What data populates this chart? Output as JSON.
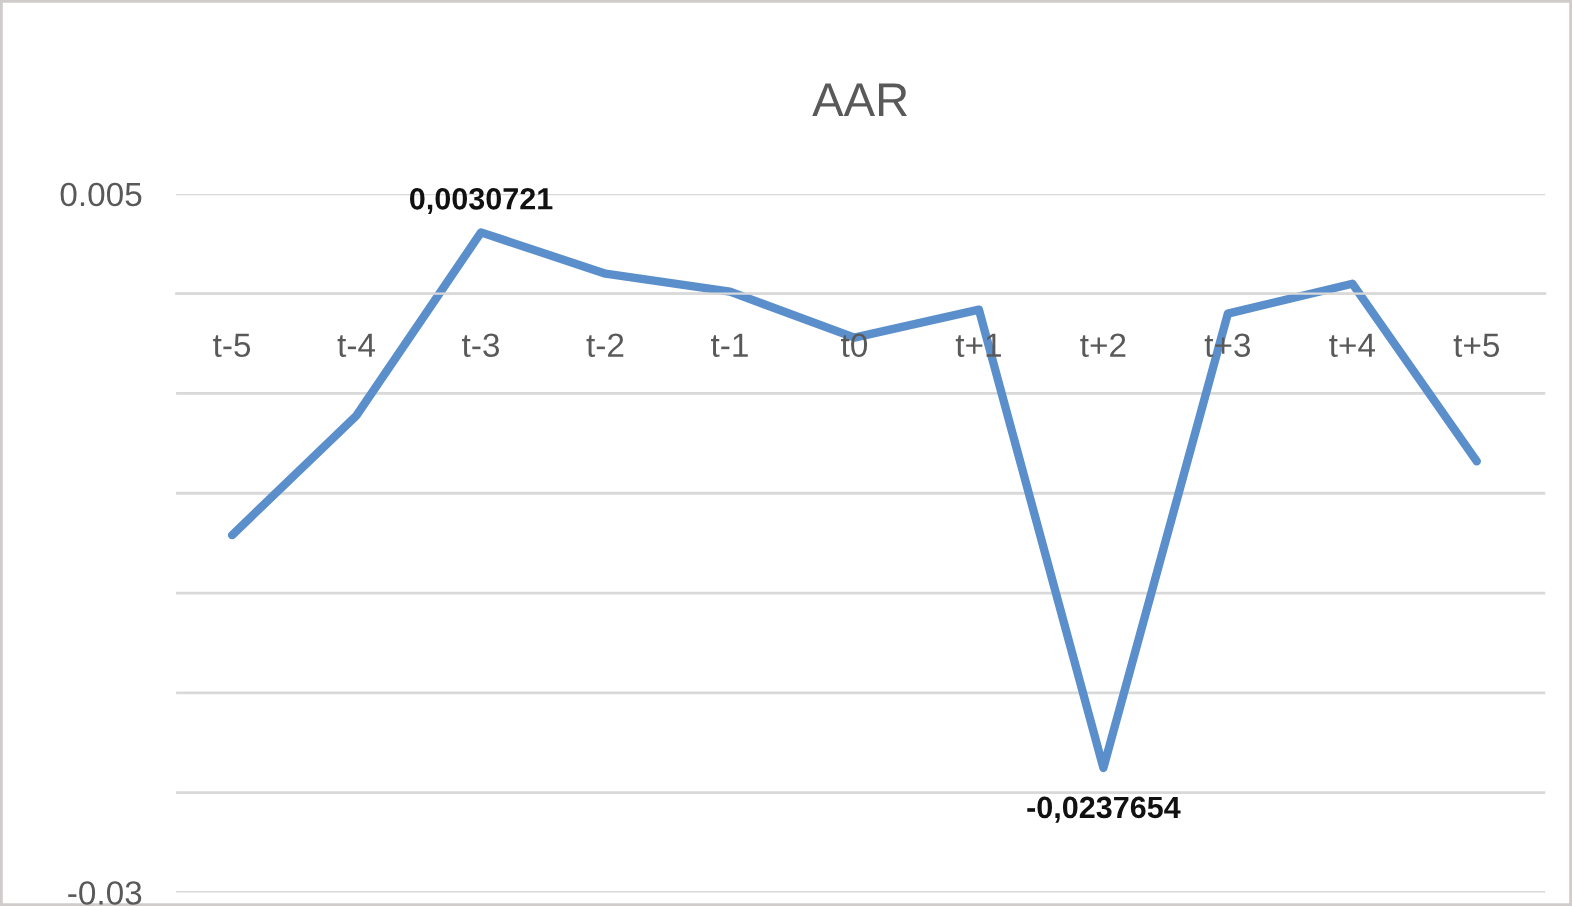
{
  "chart_data": {
    "type": "line",
    "title": "AAR",
    "categories": [
      "t-5",
      "t-4",
      "t-3",
      "t-2",
      "t-1",
      "t0",
      "t+1",
      "t+2",
      "t+3",
      "t+4",
      "t+5"
    ],
    "series": [
      {
        "color": "#5b8fcb",
        "values": [
          -0.0121,
          -0.0061,
          0.0030721,
          0.001,
          0.0001,
          -0.0022,
          -0.0008,
          -0.0237654,
          -0.001,
          0.0005,
          -0.0084
        ],
        "value_labels": [
          null,
          null,
          "0,0030721",
          null,
          null,
          null,
          null,
          "-0,0237654",
          null,
          null,
          null
        ]
      }
    ],
    "ylim": [
      -0.03,
      0.005
    ],
    "yticks": [
      {
        "value": -0.03,
        "label": "-0.03"
      },
      {
        "value": -0.025,
        "label": null
      },
      {
        "value": -0.02,
        "label": null
      },
      {
        "value": -0.015,
        "label": null
      },
      {
        "value": -0.01,
        "label": null
      },
      {
        "value": -0.005,
        "label": null
      },
      {
        "value": 0,
        "label": null
      },
      {
        "value": 0.005,
        "label": "0.005"
      }
    ],
    "grid": "y",
    "marker": "none",
    "line_style": "solid"
  }
}
